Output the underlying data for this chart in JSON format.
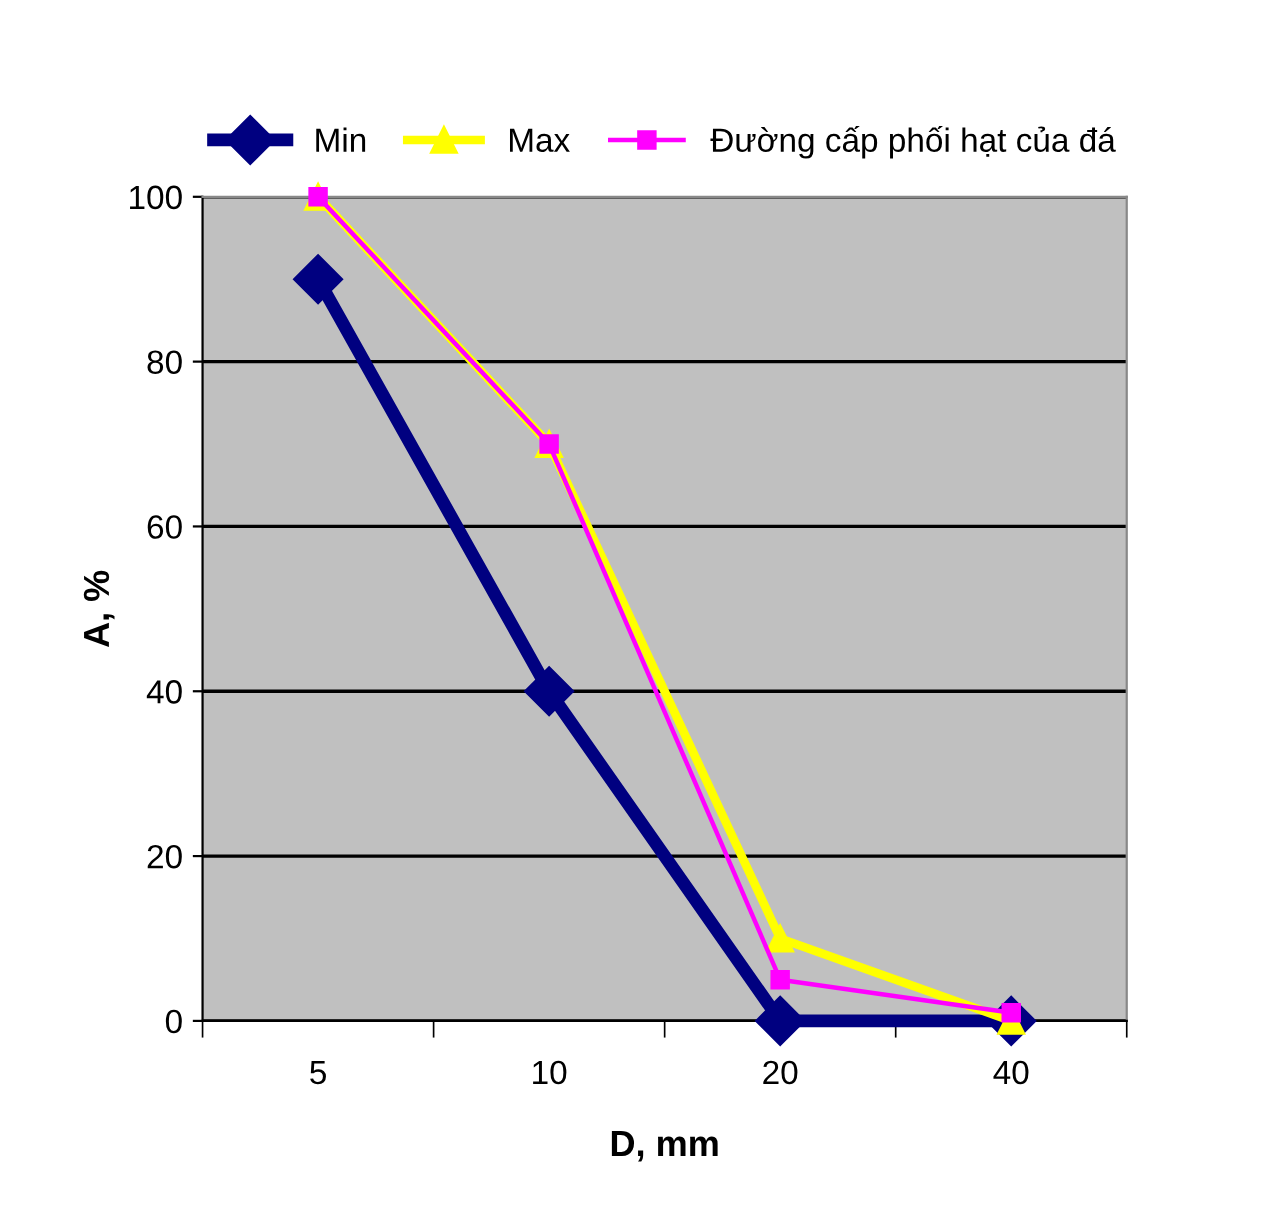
{
  "chart_data": {
    "type": "line",
    "xlabel": "D, mm",
    "ylabel": "A, %",
    "categories": [
      "5",
      "10",
      "20",
      "40"
    ],
    "series": [
      {
        "name": "Min",
        "color": "#000080",
        "marker": "diamond",
        "values": [
          90,
          40,
          0,
          0
        ]
      },
      {
        "name": "Max",
        "color": "#ffff00",
        "marker": "triangle",
        "values": [
          100,
          70,
          10,
          0
        ]
      },
      {
        "name": "Đường cấp phối hạt của đá",
        "color": "#ff00ff",
        "marker": "square",
        "values": [
          100,
          70,
          5,
          1
        ]
      }
    ],
    "ylim": [
      0,
      100
    ],
    "yticks": [
      0,
      20,
      40,
      60,
      80,
      100
    ],
    "grid": "y",
    "legend": "top"
  }
}
